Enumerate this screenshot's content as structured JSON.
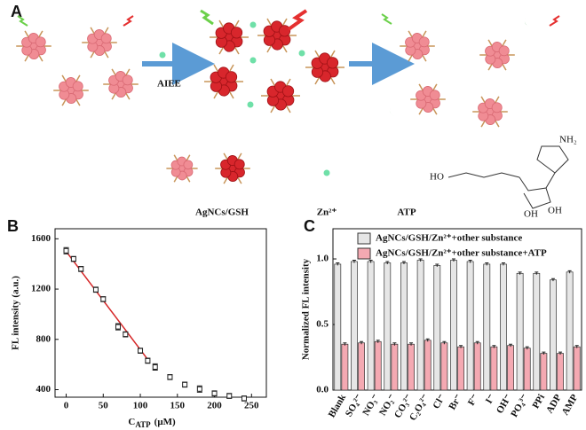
{
  "schematic": {
    "panel_label": "A",
    "arrow_label": "AIEE",
    "legend": [
      "AgNCs/GSH",
      "Zn²⁺",
      "ATP"
    ],
    "structure_labels": [
      "NH₂",
      "HO",
      "OH",
      "OH"
    ]
  },
  "chart_data": [
    {
      "type": "scatter",
      "panel_label": "B",
      "ylabel": "FL intensity (a.u.)",
      "xlabel_parts": [
        "C",
        "ATP",
        "(μM)"
      ],
      "x": [
        0,
        10,
        20,
        40,
        50,
        70,
        80,
        100,
        110,
        120,
        140,
        160,
        180,
        200,
        220,
        240
      ],
      "values": [
        1505,
        1440,
        1360,
        1195,
        1120,
        900,
        840,
        710,
        630,
        580,
        500,
        440,
        405,
        370,
        350,
        330
      ],
      "errors": [
        25,
        20,
        20,
        20,
        20,
        25,
        20,
        20,
        20,
        25,
        20,
        20,
        25,
        20,
        20,
        20
      ],
      "color": "#222222",
      "fit": {
        "x": [
          0,
          110
        ],
        "values": [
          1500,
          640
        ],
        "color": "#d62728"
      },
      "xlim": [
        -15,
        270
      ],
      "xticks": [
        0,
        50,
        100,
        150,
        200,
        250
      ],
      "ylim": [
        340,
        1680
      ],
      "yticks": [
        400,
        800,
        1200,
        1600
      ]
    },
    {
      "type": "bar",
      "panel_label": "C",
      "ylabel": "Normalized FL intensity",
      "categories": [
        "Blank",
        "SO₄²⁻",
        "NO₃⁻",
        "NO₂⁻",
        "CO₃²⁻",
        "C₂O₄²⁻",
        "Cl⁻",
        "Br⁻",
        "F⁻",
        "I⁻",
        "OH⁻",
        "PO₄³⁻",
        "PPi",
        "ADP",
        "AMP"
      ],
      "series": [
        {
          "name": "AgNCs/GSH/Zn²⁺+other substance",
          "color": "#e6e6e6",
          "values": [
            0.96,
            0.98,
            0.98,
            0.97,
            0.97,
            0.99,
            0.95,
            0.99,
            0.98,
            0.96,
            0.96,
            0.89,
            0.89,
            0.84,
            0.9
          ],
          "errors": [
            0.01,
            0.01,
            0.01,
            0.01,
            0.01,
            0.01,
            0.01,
            0.01,
            0.01,
            0.01,
            0.01,
            0.01,
            0.01,
            0.01,
            0.01
          ]
        },
        {
          "name": "AgNCs/GSH/Zn²⁺+other substance+ATP",
          "color": "#f4a9b2",
          "values": [
            0.35,
            0.36,
            0.37,
            0.35,
            0.35,
            0.38,
            0.36,
            0.33,
            0.36,
            0.33,
            0.34,
            0.32,
            0.28,
            0.28,
            0.33
          ],
          "errors": [
            0.01,
            0.01,
            0.01,
            0.01,
            0.01,
            0.01,
            0.01,
            0.01,
            0.01,
            0.01,
            0.01,
            0.01,
            0.01,
            0.01,
            0.01
          ]
        }
      ],
      "ylim": [
        0,
        1.23
      ],
      "yticks": [
        {
          "value": 0,
          "label": "0.0"
        },
        0.5,
        {
          "value": 1,
          "label": "1.0"
        }
      ]
    }
  ]
}
